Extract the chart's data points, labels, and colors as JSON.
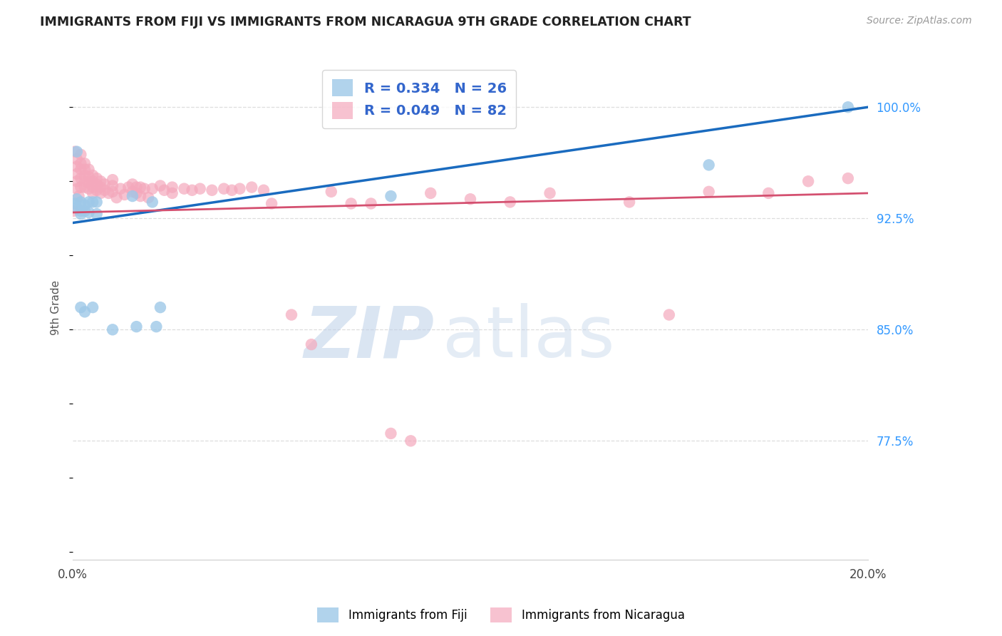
{
  "title": "IMMIGRANTS FROM FIJI VS IMMIGRANTS FROM NICARAGUA 9TH GRADE CORRELATION CHART",
  "source": "Source: ZipAtlas.com",
  "ylabel": "9th Grade",
  "yticks": [
    0.775,
    0.85,
    0.925,
    1.0
  ],
  "ytick_labels": [
    "77.5%",
    "85.0%",
    "92.5%",
    "100.0%"
  ],
  "xlim": [
    0.0,
    0.2
  ],
  "ylim": [
    0.695,
    1.035
  ],
  "fiji_color": "#9ec8e8",
  "nicaragua_color": "#f4a8bc",
  "fiji_line_color": "#1a6bbf",
  "nicaragua_line_color": "#d45070",
  "fiji_R": 0.334,
  "fiji_N": 26,
  "nicaragua_R": 0.049,
  "nicaragua_N": 82,
  "fiji_x": [
    0.0005,
    0.001,
    0.001,
    0.001,
    0.002,
    0.002,
    0.002,
    0.002,
    0.003,
    0.003,
    0.003,
    0.004,
    0.004,
    0.005,
    0.005,
    0.006,
    0.006,
    0.01,
    0.015,
    0.016,
    0.02,
    0.021,
    0.022,
    0.08,
    0.16,
    0.195
  ],
  "fiji_y": [
    0.935,
    0.97,
    0.938,
    0.932,
    0.936,
    0.93,
    0.928,
    0.865,
    0.934,
    0.93,
    0.862,
    0.936,
    0.929,
    0.936,
    0.865,
    0.936,
    0.928,
    0.85,
    0.94,
    0.852,
    0.936,
    0.852,
    0.865,
    0.94,
    0.961,
    1.0
  ],
  "nicaragua_x": [
    0.0002,
    0.0005,
    0.001,
    0.001,
    0.001,
    0.001,
    0.001,
    0.0015,
    0.002,
    0.002,
    0.002,
    0.002,
    0.002,
    0.003,
    0.003,
    0.003,
    0.003,
    0.003,
    0.004,
    0.004,
    0.004,
    0.004,
    0.005,
    0.005,
    0.005,
    0.005,
    0.006,
    0.006,
    0.006,
    0.007,
    0.007,
    0.007,
    0.008,
    0.008,
    0.009,
    0.01,
    0.01,
    0.01,
    0.011,
    0.012,
    0.013,
    0.014,
    0.015,
    0.015,
    0.016,
    0.016,
    0.017,
    0.017,
    0.018,
    0.019,
    0.02,
    0.022,
    0.023,
    0.025,
    0.025,
    0.028,
    0.03,
    0.032,
    0.035,
    0.038,
    0.04,
    0.042,
    0.045,
    0.048,
    0.05,
    0.055,
    0.06,
    0.065,
    0.07,
    0.075,
    0.08,
    0.085,
    0.09,
    0.1,
    0.11,
    0.12,
    0.14,
    0.15,
    0.16,
    0.175,
    0.185,
    0.195
  ],
  "nicaragua_y": [
    0.93,
    0.97,
    0.965,
    0.96,
    0.955,
    0.95,
    0.945,
    0.94,
    0.968,
    0.962,
    0.958,
    0.952,
    0.946,
    0.962,
    0.958,
    0.954,
    0.95,
    0.946,
    0.958,
    0.953,
    0.949,
    0.945,
    0.954,
    0.95,
    0.946,
    0.942,
    0.952,
    0.948,
    0.944,
    0.95,
    0.946,
    0.942,
    0.948,
    0.944,
    0.942,
    0.951,
    0.947,
    0.943,
    0.939,
    0.945,
    0.941,
    0.946,
    0.948,
    0.943,
    0.946,
    0.942,
    0.946,
    0.94,
    0.945,
    0.939,
    0.945,
    0.947,
    0.944,
    0.946,
    0.942,
    0.945,
    0.944,
    0.945,
    0.944,
    0.945,
    0.944,
    0.945,
    0.946,
    0.944,
    0.935,
    0.86,
    0.84,
    0.943,
    0.935,
    0.935,
    0.78,
    0.775,
    0.942,
    0.938,
    0.936,
    0.942,
    0.936,
    0.86,
    0.943,
    0.942,
    0.95,
    0.952
  ],
  "background_color": "#ffffff",
  "grid_color": "#dddddd",
  "right_label_color": "#3399ff",
  "legend_text_color": "#3366cc",
  "axis_label_color": "#555555",
  "title_color": "#222222",
  "source_color": "#999999"
}
